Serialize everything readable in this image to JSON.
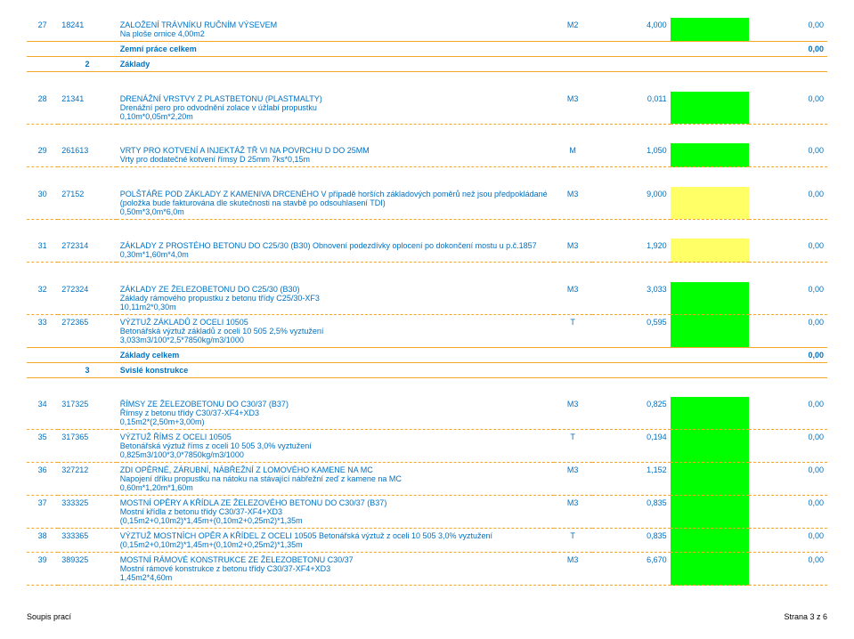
{
  "colors": {
    "text": "#0070c0",
    "border": "#f5a623",
    "green": "#00ff00",
    "yellow": "#ffff66"
  },
  "rows": [
    {
      "type": "data",
      "num": "27",
      "code": "18241",
      "desc": "ZALOŽENÍ TRÁVNÍKU RUČNÍM VÝSEVEM\nNa ploše ornice                                                            4,00m2",
      "unit": "M2",
      "qty": "4,000",
      "price": "",
      "total": "0,00",
      "priceFill": "green"
    },
    {
      "type": "section",
      "num": "",
      "code": "",
      "desc": "Zemní práce celkem",
      "unit": "",
      "qty": "",
      "price": "",
      "total": "0,00",
      "bold": true
    },
    {
      "type": "section",
      "num": "",
      "secnum": "2",
      "desc": "Základy",
      "unit": "",
      "qty": "",
      "price": "",
      "total": "",
      "bold": true
    },
    {
      "type": "spacer"
    },
    {
      "type": "data",
      "num": "28",
      "code": "21341",
      "desc": "DRENÁŽNÍ VRSTVY Z PLASTBETONU (PLASTMALTY)\nDrenážní pero pro odvodnění zolace v úžlabí propustku\n0,10m*0,05m*2,20m",
      "unit": "M3",
      "qty": "0,011",
      "price": "",
      "total": "0,00",
      "priceFill": "green"
    },
    {
      "type": "spacer"
    },
    {
      "type": "data",
      "num": "29",
      "code": "261613",
      "desc": "VRTY PRO KOTVENÍ A INJEKTÁŽ TŘ VI NA POVRCHU D DO 25MM\nVrty pro dodatečné kotvení římsy D 25mm                                   7ks*0,15m",
      "unit": "M",
      "qty": "1,050",
      "price": "",
      "total": "0,00",
      "priceFill": "green"
    },
    {
      "type": "spacer"
    },
    {
      "type": "data",
      "num": "30",
      "code": "27152",
      "desc": "POLŠTÁŘE POD ZÁKLADY Z KAMENIVA DRCENÉHO  V případě horších základových poměrů než jsou předpokládané (položka bude fakturována dle skutečnosti na stavbě po odsouhlasení TDI)\n0,50m*3,0m*6,0m",
      "unit": "M3",
      "qty": "9,000",
      "price": "",
      "total": "0,00",
      "priceFill": "yellow"
    },
    {
      "type": "spacer"
    },
    {
      "type": "data",
      "num": "31",
      "code": "272314",
      "desc": "ZÁKLADY Z PROSTÉHO BETONU DO C25/30 (B30)                              Obnovení podezdívky oplocení po dokončení mostu u p.č.1857     0,30m*1,60m*4,0m",
      "unit": "M3",
      "qty": "1,920",
      "price": "",
      "total": "0,00",
      "priceFill": "yellow"
    },
    {
      "type": "spacer"
    },
    {
      "type": "data",
      "num": "32",
      "code": "272324",
      "desc": "ZÁKLADY ZE ŽELEZOBETONU DO C25/30 (B30)\nZáklady rámového propustku z betonu třídy C25/30-XF3\n10,11m2*0,30m",
      "unit": "M3",
      "qty": "3,033",
      "price": "",
      "total": "0,00",
      "priceFill": "green"
    },
    {
      "type": "data",
      "num": "33",
      "code": "272365",
      "desc": "VÝZTUŽ ZÁKLADŮ Z OCELI 10505\nBetonářská výztuž základů z oceli 10 505       2,5% vyztužení\n3,033m3/100*2,5*7850kg/m3/1000",
      "unit": "T",
      "qty": "0,595",
      "price": "",
      "total": "0,00",
      "priceFill": "green"
    },
    {
      "type": "section",
      "num": "",
      "code": "",
      "desc": "Základy celkem",
      "unit": "",
      "qty": "",
      "price": "",
      "total": "0,00",
      "bold": true
    },
    {
      "type": "section",
      "num": "",
      "secnum": "3",
      "desc": "Svislé konstrukce",
      "unit": "",
      "qty": "",
      "price": "",
      "total": "",
      "bold": true
    },
    {
      "type": "spacer"
    },
    {
      "type": "data",
      "num": "34",
      "code": "317325",
      "desc": "ŘÍMSY ZE ŽELEZOBETONU DO C30/37 (B37)\nŘímsy z betonu třídy C30/37-XF4+XD3\n0,15m2*(2,50m+3,00m)",
      "unit": "M3",
      "qty": "0,825",
      "price": "",
      "total": "0,00",
      "priceFill": "green"
    },
    {
      "type": "data",
      "num": "35",
      "code": "317365",
      "desc": "VÝZTUŽ ŘÍMS Z OCELI 10505\nBetonářská výztuž říms z oceli 10 505           3,0% vyztužení\n0,825m3/100*3,0*7850kg/m3/1000",
      "unit": "T",
      "qty": "0,194",
      "price": "",
      "total": "0,00",
      "priceFill": "green"
    },
    {
      "type": "data",
      "num": "36",
      "code": "327212",
      "desc": "ZDI OPĚRNÉ, ZÁRUBNÍ, NÁBŘEŽNÍ Z LOMOVÉHO KAMENE NA MC\nNapojení dříku propustku na nátoku na stávající nábřežní zeď z kamene na MC\n0,60m*1,20m*1,60m",
      "unit": "M3",
      "qty": "1,152",
      "price": "",
      "total": "0,00",
      "priceFill": "green"
    },
    {
      "type": "data",
      "num": "37",
      "code": "333325",
      "desc": "MOSTNÍ OPĚRY A KŘÍDLA ZE ŽELEZOVÉHO BETONU DO C30/37 (B37)\nMostní křídla z betonu třídy C30/37-XF4+XD3\n(0,15m2+0,10m2)*1,45m+(0,10m2+0,25m2)*1,35m",
      "unit": "M3",
      "qty": "0,835",
      "price": "",
      "total": "0,00",
      "priceFill": "green"
    },
    {
      "type": "data",
      "num": "38",
      "code": "333365",
      "desc": "VÝZTUŽ MOSTNÍCH OPĚR A KŘÍDEL Z OCELI 10505                          Betonářská výztuž z oceli 10 505          3,0% vyztužení\n(0,15m2+0,10m2)*1,45m+(0,10m2+0,25m2)*1,35m",
      "unit": "T",
      "qty": "0,835",
      "price": "",
      "total": "0,00",
      "priceFill": "green"
    },
    {
      "type": "data",
      "num": "39",
      "code": "389325",
      "desc": "MOSTNÍ RÁMOVÉ KONSTRUKCE ZE ŽELEZOBETONU C30/37\nMostní rámové konstrukce z betonu třídy C30/37-XF4+XD3\n1,45m2*4,60m",
      "unit": "M3",
      "qty": "6,670",
      "price": "",
      "total": "0,00",
      "priceFill": "green"
    }
  ],
  "footer": {
    "left": "Soupis prací",
    "right": "Strana 3 z 6"
  }
}
